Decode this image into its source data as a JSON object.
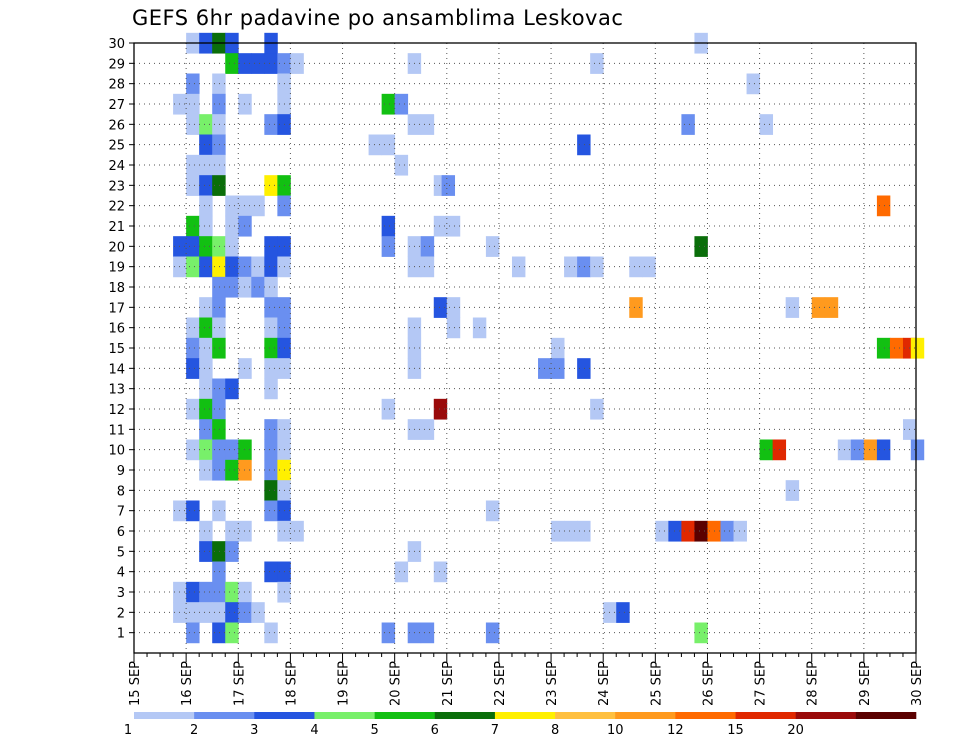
{
  "chart_data": {
    "type": "heatmap",
    "title": "GEFS 6hr padavine po ansamblima Leskovac",
    "x_ticks": [
      "15 SEP",
      "16 SEP",
      "17 SEP",
      "18 SEP",
      "19 SEP",
      "20 SEP",
      "21 SEP",
      "22 SEP",
      "23 SEP",
      "24 SEP",
      "25 SEP",
      "26 SEP",
      "27 SEP",
      "28 SEP",
      "29 SEP",
      "30 SEP"
    ],
    "y_ticks": [
      1,
      2,
      3,
      4,
      5,
      6,
      7,
      8,
      9,
      10,
      11,
      12,
      13,
      14,
      15,
      16,
      17,
      18,
      19,
      20,
      21,
      22,
      23,
      24,
      25,
      26,
      27,
      28,
      29,
      30
    ],
    "steps_per_day": 4,
    "grid": true,
    "colorbar": {
      "position": "bottom",
      "labels": [
        "1",
        "2",
        "3",
        "4",
        "5",
        "6",
        "7",
        "8",
        "10",
        "12",
        "15",
        "20"
      ],
      "colors": [
        "#b4c8f5",
        "#6a8ff0",
        "#2555e0",
        "#78f06a",
        "#12c012",
        "#0a6e0a",
        "#fff000",
        "#ffc040",
        "#ff9a1e",
        "#ff6a00",
        "#e02800",
        "#9a0a0a",
        "#5a0000"
      ]
    },
    "cells": [
      [
        30,
        16.0,
        1
      ],
      [
        30,
        16.25,
        3
      ],
      [
        30,
        16.5,
        6
      ],
      [
        30,
        16.75,
        3
      ],
      [
        30,
        17.5,
        3
      ],
      [
        30,
        25.75,
        1
      ],
      [
        29,
        16.75,
        5
      ],
      [
        29,
        17.0,
        3
      ],
      [
        29,
        17.25,
        3
      ],
      [
        29,
        17.5,
        3
      ],
      [
        29,
        17.75,
        2
      ],
      [
        29,
        18.0,
        1
      ],
      [
        29,
        20.25,
        1
      ],
      [
        29,
        23.75,
        1
      ],
      [
        28,
        16.0,
        2
      ],
      [
        28,
        16.5,
        1
      ],
      [
        28,
        17.75,
        1
      ],
      [
        28,
        26.75,
        1
      ],
      [
        27,
        15.75,
        1
      ],
      [
        27,
        16.0,
        1
      ],
      [
        27,
        16.5,
        2
      ],
      [
        27,
        17.0,
        1
      ],
      [
        27,
        17.75,
        1
      ],
      [
        27,
        19.75,
        5
      ],
      [
        27,
        20.0,
        2
      ],
      [
        26,
        16.0,
        1
      ],
      [
        26,
        16.25,
        4
      ],
      [
        26,
        16.5,
        1
      ],
      [
        26,
        17.5,
        2
      ],
      [
        26,
        17.75,
        3
      ],
      [
        26,
        20.25,
        1
      ],
      [
        26,
        20.5,
        1
      ],
      [
        26,
        25.5,
        2
      ],
      [
        26,
        27.0,
        1
      ],
      [
        25,
        16.25,
        3
      ],
      [
        25,
        16.5,
        2
      ],
      [
        25,
        19.5,
        1
      ],
      [
        25,
        19.75,
        1
      ],
      [
        25,
        23.5,
        3
      ],
      [
        24,
        16.0,
        1
      ],
      [
        24,
        16.25,
        1
      ],
      [
        24,
        16.5,
        1
      ],
      [
        24,
        20.0,
        1
      ],
      [
        23,
        16.0,
        1
      ],
      [
        23,
        16.25,
        3
      ],
      [
        23,
        16.5,
        6
      ],
      [
        23,
        17.5,
        7
      ],
      [
        23,
        17.75,
        5
      ],
      [
        23,
        20.75,
        1
      ],
      [
        23,
        20.9,
        2
      ],
      [
        22,
        16.25,
        1
      ],
      [
        22,
        16.75,
        1
      ],
      [
        22,
        17.0,
        1
      ],
      [
        22,
        17.25,
        1
      ],
      [
        22,
        17.75,
        2
      ],
      [
        22,
        29.25,
        10
      ],
      [
        21,
        16.0,
        5
      ],
      [
        21,
        16.25,
        1
      ],
      [
        21,
        16.75,
        1
      ],
      [
        21,
        17.0,
        2
      ],
      [
        21,
        19.75,
        3
      ],
      [
        21,
        20.75,
        1
      ],
      [
        21,
        21.0,
        1
      ],
      [
        20,
        15.75,
        3
      ],
      [
        20,
        16.0,
        3
      ],
      [
        20,
        16.25,
        5
      ],
      [
        20,
        16.5,
        4
      ],
      [
        20,
        16.75,
        1
      ],
      [
        20,
        17.5,
        3
      ],
      [
        20,
        17.75,
        3
      ],
      [
        20,
        19.75,
        2
      ],
      [
        20,
        20.25,
        1
      ],
      [
        20,
        20.5,
        2
      ],
      [
        20,
        21.75,
        1
      ],
      [
        20,
        25.75,
        6
      ],
      [
        19,
        15.75,
        1
      ],
      [
        19,
        16.0,
        4
      ],
      [
        19,
        16.25,
        3
      ],
      [
        19,
        16.5,
        7
      ],
      [
        19,
        16.75,
        3
      ],
      [
        19,
        17.0,
        2
      ],
      [
        19,
        17.25,
        1
      ],
      [
        19,
        17.5,
        3
      ],
      [
        19,
        17.75,
        1
      ],
      [
        19,
        20.25,
        1
      ],
      [
        19,
        20.5,
        1
      ],
      [
        19,
        22.25,
        1
      ],
      [
        19,
        23.25,
        1
      ],
      [
        19,
        23.5,
        2
      ],
      [
        19,
        23.75,
        1
      ],
      [
        19,
        24.5,
        1
      ],
      [
        19,
        24.75,
        1
      ],
      [
        18,
        16.5,
        2
      ],
      [
        18,
        16.75,
        2
      ],
      [
        18,
        17.0,
        1
      ],
      [
        18,
        17.25,
        2
      ],
      [
        18,
        17.5,
        1
      ],
      [
        17,
        16.25,
        1
      ],
      [
        17,
        16.5,
        2
      ],
      [
        17,
        17.5,
        2
      ],
      [
        17,
        17.75,
        2
      ],
      [
        17,
        20.75,
        3
      ],
      [
        17,
        21.0,
        1
      ],
      [
        17,
        24.5,
        9
      ],
      [
        17,
        27.5,
        1
      ],
      [
        17,
        28.0,
        9
      ],
      [
        17,
        28.25,
        9
      ],
      [
        16,
        16.0,
        1
      ],
      [
        16,
        16.25,
        5
      ],
      [
        16,
        16.5,
        1
      ],
      [
        16,
        17.5,
        1
      ],
      [
        16,
        17.75,
        2
      ],
      [
        16,
        20.25,
        1
      ],
      [
        16,
        21.0,
        1
      ],
      [
        16,
        21.5,
        1
      ],
      [
        15,
        16.0,
        2
      ],
      [
        15,
        16.25,
        1
      ],
      [
        15,
        16.5,
        5
      ],
      [
        15,
        17.5,
        5
      ],
      [
        15,
        17.75,
        3
      ],
      [
        15,
        20.25,
        1
      ],
      [
        15,
        23.0,
        1
      ],
      [
        15,
        29.25,
        5
      ],
      [
        15,
        29.5,
        10
      ],
      [
        15,
        29.75,
        11
      ],
      [
        15,
        29.9,
        7
      ],
      [
        14,
        16.0,
        3
      ],
      [
        14,
        16.25,
        1
      ],
      [
        14,
        17.0,
        1
      ],
      [
        14,
        17.5,
        1
      ],
      [
        14,
        17.75,
        1
      ],
      [
        14,
        20.25,
        1
      ],
      [
        14,
        22.75,
        2
      ],
      [
        14,
        23.0,
        2
      ],
      [
        14,
        23.5,
        3
      ],
      [
        13,
        16.25,
        1
      ],
      [
        13,
        16.5,
        2
      ],
      [
        13,
        16.75,
        3
      ],
      [
        13,
        17.5,
        1
      ],
      [
        12,
        16.0,
        1
      ],
      [
        12,
        16.25,
        5
      ],
      [
        12,
        16.5,
        2
      ],
      [
        12,
        19.75,
        1
      ],
      [
        12,
        20.75,
        12
      ],
      [
        12,
        23.75,
        1
      ],
      [
        11,
        16.25,
        2
      ],
      [
        11,
        16.5,
        5
      ],
      [
        11,
        17.5,
        2
      ],
      [
        11,
        17.75,
        1
      ],
      [
        11,
        20.25,
        1
      ],
      [
        11,
        20.5,
        1
      ],
      [
        11,
        29.75,
        1
      ],
      [
        10,
        16.0,
        1
      ],
      [
        10,
        16.25,
        4
      ],
      [
        10,
        16.5,
        2
      ],
      [
        10,
        16.75,
        2
      ],
      [
        10,
        17.0,
        5
      ],
      [
        10,
        17.5,
        2
      ],
      [
        10,
        17.75,
        1
      ],
      [
        10,
        27.0,
        5
      ],
      [
        10,
        27.25,
        11
      ],
      [
        10,
        28.5,
        1
      ],
      [
        10,
        28.75,
        2
      ],
      [
        10,
        29.0,
        9
      ],
      [
        10,
        29.25,
        3
      ],
      [
        10,
        29.9,
        2
      ],
      [
        9,
        16.25,
        1
      ],
      [
        9,
        16.5,
        2
      ],
      [
        9,
        16.75,
        5
      ],
      [
        9,
        17.0,
        9
      ],
      [
        9,
        17.5,
        2
      ],
      [
        9,
        17.75,
        7
      ],
      [
        8,
        17.5,
        6
      ],
      [
        8,
        17.75,
        1
      ],
      [
        8,
        27.5,
        1
      ],
      [
        7,
        15.75,
        1
      ],
      [
        7,
        16.0,
        3
      ],
      [
        7,
        16.5,
        1
      ],
      [
        7,
        17.5,
        2
      ],
      [
        7,
        17.75,
        3
      ],
      [
        7,
        21.75,
        1
      ],
      [
        6,
        16.25,
        1
      ],
      [
        6,
        16.75,
        1
      ],
      [
        6,
        17.0,
        1
      ],
      [
        6,
        17.75,
        1
      ],
      [
        6,
        18.0,
        1
      ],
      [
        6,
        23.0,
        1
      ],
      [
        6,
        23.25,
        1
      ],
      [
        6,
        23.5,
        1
      ],
      [
        6,
        25.0,
        1
      ],
      [
        6,
        25.25,
        3
      ],
      [
        6,
        25.5,
        11
      ],
      [
        6,
        25.75,
        13
      ],
      [
        6,
        26.0,
        10
      ],
      [
        6,
        26.25,
        2
      ],
      [
        6,
        26.5,
        1
      ],
      [
        5,
        16.25,
        3
      ],
      [
        5,
        16.5,
        6
      ],
      [
        5,
        16.75,
        2
      ],
      [
        5,
        20.25,
        1
      ],
      [
        4,
        16.5,
        2
      ],
      [
        4,
        17.5,
        3
      ],
      [
        4,
        17.75,
        3
      ],
      [
        4,
        20.0,
        1
      ],
      [
        4,
        20.75,
        1
      ],
      [
        3,
        15.75,
        1
      ],
      [
        3,
        16.0,
        3
      ],
      [
        3,
        16.25,
        2
      ],
      [
        3,
        16.5,
        2
      ],
      [
        3,
        16.75,
        4
      ],
      [
        3,
        17.0,
        1
      ],
      [
        3,
        17.75,
        1
      ],
      [
        2,
        15.75,
        1
      ],
      [
        2,
        16.0,
        1
      ],
      [
        2,
        16.25,
        1
      ],
      [
        2,
        16.5,
        1
      ],
      [
        2,
        16.75,
        3
      ],
      [
        2,
        17.0,
        2
      ],
      [
        2,
        17.25,
        1
      ],
      [
        2,
        24.0,
        1
      ],
      [
        2,
        24.25,
        3
      ],
      [
        1,
        16.0,
        2
      ],
      [
        1,
        16.5,
        3
      ],
      [
        1,
        16.75,
        4
      ],
      [
        1,
        17.5,
        1
      ],
      [
        1,
        19.75,
        2
      ],
      [
        1,
        20.25,
        2
      ],
      [
        1,
        20.5,
        2
      ],
      [
        1,
        21.75,
        2
      ],
      [
        1,
        25.75,
        4
      ]
    ]
  }
}
